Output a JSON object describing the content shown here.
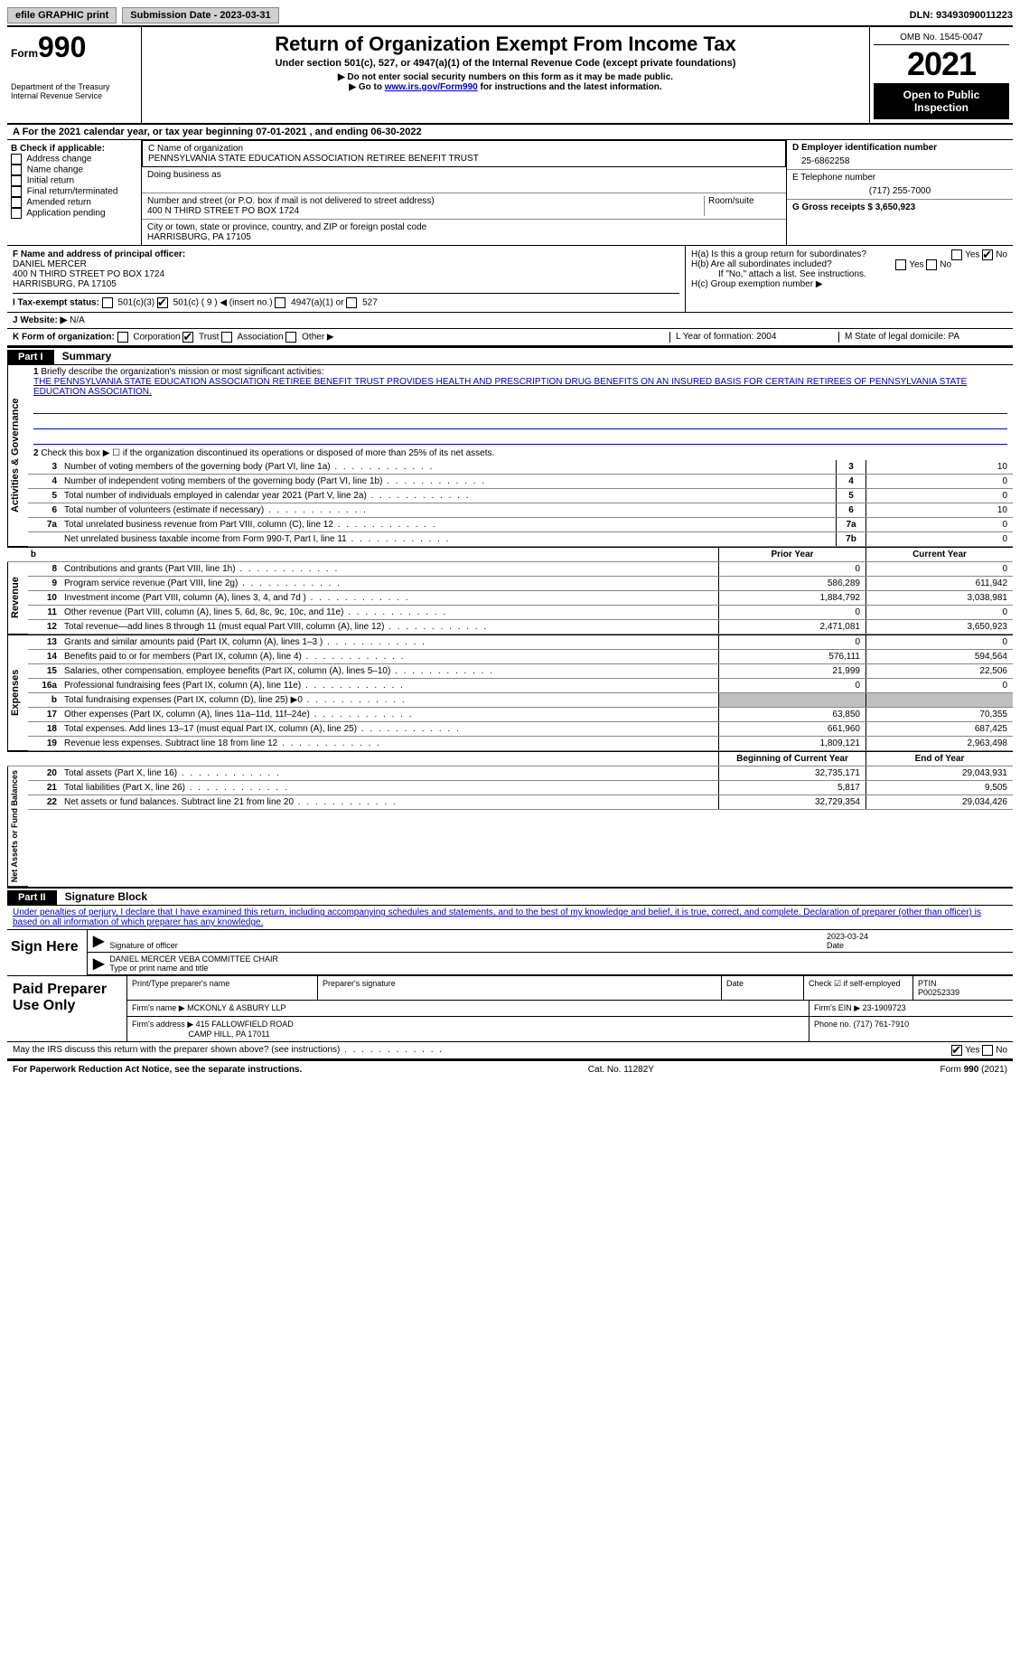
{
  "topbar": {
    "efile": "efile GRAPHIC print",
    "submission_label": "Submission Date - 2023-03-31",
    "dln_label": "DLN: 93493090011223"
  },
  "header": {
    "form_label": "Form",
    "form_number": "990",
    "dept": "Department of the Treasury Internal Revenue Service",
    "title": "Return of Organization Exempt From Income Tax",
    "subtitle": "Under section 501(c), 527, or 4947(a)(1) of the Internal Revenue Code (except private foundations)",
    "note1": "▶ Do not enter social security numbers on this form as it may be made public.",
    "note2_prefix": "▶ Go to ",
    "note2_link": "www.irs.gov/Form990",
    "note2_suffix": " for instructions and the latest information.",
    "omb": "OMB No. 1545-0047",
    "year": "2021",
    "open": "Open to Public Inspection"
  },
  "rowA": {
    "text": "A For the 2021 calendar year, or tax year beginning 07-01-2021   , and ending 06-30-2022"
  },
  "colB": {
    "label": "B Check if applicable:",
    "items": [
      "Address change",
      "Name change",
      "Initial return",
      "Final return/terminated",
      "Amended return",
      "Application pending"
    ]
  },
  "colC": {
    "name_label": "C Name of organization",
    "name": "PENNSYLVANIA STATE EDUCATION ASSOCIATION RETIREE BENEFIT TRUST",
    "dba_label": "Doing business as",
    "addr_label": "Number and street (or P.O. box if mail is not delivered to street address)",
    "room_label": "Room/suite",
    "addr": "400 N THIRD STREET PO BOX 1724",
    "city_label": "City or town, state or province, country, and ZIP or foreign postal code",
    "city": "HARRISBURG, PA  17105"
  },
  "colD": {
    "ein_label": "D Employer identification number",
    "ein": "25-6862258",
    "phone_label": "E Telephone number",
    "phone": "(717) 255-7000",
    "gross_label": "G Gross receipts $ 3,650,923"
  },
  "rowF": {
    "label": "F  Name and address of principal officer:",
    "name": "DANIEL MERCER",
    "addr": "400 N THIRD STREET PO BOX 1724",
    "city": "HARRISBURG, PA  17105"
  },
  "rowH": {
    "ha": "H(a)  Is this a group return for subordinates?",
    "hb": "H(b)  Are all subordinates included?",
    "hb_note": "If \"No,\" attach a list. See instructions.",
    "hc": "H(c)  Group exemption number ▶",
    "yes": "Yes",
    "no": "No"
  },
  "rowI": {
    "label": "I    Tax-exempt status:",
    "c3": "501(c)(3)",
    "c": "501(c) ( 9 ) ◀ (insert no.)",
    "a4947": "4947(a)(1) or",
    "s527": "527"
  },
  "rowJ": {
    "label": "J   Website: ▶",
    "value": "N/A"
  },
  "rowK": {
    "label": "K Form of organization:",
    "corp": "Corporation",
    "trust": "Trust",
    "assoc": "Association",
    "other": "Other ▶",
    "L_label": "L Year of formation: 2004",
    "M_label": "M State of legal domicile: PA"
  },
  "part1": {
    "header": "Part I",
    "title": "Summary",
    "line1_label": "Briefly describe the organization's mission or most significant activities:",
    "line1_text": "THE PENNSYLVANIA STATE EDUCATION ASSOCIATION RETIREE BENEFIT TRUST PROVIDES HEALTH AND PRESCRIPTION DRUG BENEFITS ON AN INSURED BASIS FOR CERTAIN RETIREES OF PENNSYLVANIA STATE EDUCATION ASSOCIATION.",
    "line2": "Check this box ▶ ☐ if the organization discontinued its operations or disposed of more than 25% of its net assets.",
    "sides": {
      "gov": "Activities & Governance",
      "rev": "Revenue",
      "exp": "Expenses",
      "net": "Net Assets or Fund Balances"
    },
    "rows_single": [
      {
        "n": "3",
        "d": "Number of voting members of the governing body (Part VI, line 1a)",
        "b": "3",
        "v": "10"
      },
      {
        "n": "4",
        "d": "Number of independent voting members of the governing body (Part VI, line 1b)",
        "b": "4",
        "v": "0"
      },
      {
        "n": "5",
        "d": "Total number of individuals employed in calendar year 2021 (Part V, line 2a)",
        "b": "5",
        "v": "0"
      },
      {
        "n": "6",
        "d": "Total number of volunteers (estimate if necessary)",
        "b": "6",
        "v": "10"
      },
      {
        "n": "7a",
        "d": "Total unrelated business revenue from Part VIII, column (C), line 12",
        "b": "7a",
        "v": "0"
      },
      {
        "n": "",
        "d": "Net unrelated business taxable income from Form 990-T, Part I, line 11",
        "b": "7b",
        "v": "0"
      }
    ],
    "col_headers": {
      "prior": "Prior Year",
      "current": "Current Year"
    },
    "rows_rev": [
      {
        "n": "8",
        "d": "Contributions and grants (Part VIII, line 1h)",
        "p": "0",
        "c": "0"
      },
      {
        "n": "9",
        "d": "Program service revenue (Part VIII, line 2g)",
        "p": "586,289",
        "c": "611,942"
      },
      {
        "n": "10",
        "d": "Investment income (Part VIII, column (A), lines 3, 4, and 7d )",
        "p": "1,884,792",
        "c": "3,038,981"
      },
      {
        "n": "11",
        "d": "Other revenue (Part VIII, column (A), lines 5, 6d, 8c, 9c, 10c, and 11e)",
        "p": "0",
        "c": "0"
      },
      {
        "n": "12",
        "d": "Total revenue—add lines 8 through 11 (must equal Part VIII, column (A), line 12)",
        "p": "2,471,081",
        "c": "3,650,923"
      }
    ],
    "rows_exp": [
      {
        "n": "13",
        "d": "Grants and similar amounts paid (Part IX, column (A), lines 1–3 )",
        "p": "0",
        "c": "0"
      },
      {
        "n": "14",
        "d": "Benefits paid to or for members (Part IX, column (A), line 4)",
        "p": "576,111",
        "c": "594,564"
      },
      {
        "n": "15",
        "d": "Salaries, other compensation, employee benefits (Part IX, column (A), lines 5–10)",
        "p": "21,999",
        "c": "22,506"
      },
      {
        "n": "16a",
        "d": "Professional fundraising fees (Part IX, column (A), line 11e)",
        "p": "0",
        "c": "0"
      },
      {
        "n": "b",
        "d": "Total fundraising expenses (Part IX, column (D), line 25) ▶0",
        "p": "",
        "c": "",
        "shaded": true
      },
      {
        "n": "17",
        "d": "Other expenses (Part IX, column (A), lines 11a–11d, 11f–24e)",
        "p": "63,850",
        "c": "70,355"
      },
      {
        "n": "18",
        "d": "Total expenses. Add lines 13–17 (must equal Part IX, column (A), line 25)",
        "p": "661,960",
        "c": "687,425"
      },
      {
        "n": "19",
        "d": "Revenue less expenses. Subtract line 18 from line 12",
        "p": "1,809,121",
        "c": "2,963,498"
      }
    ],
    "col_headers2": {
      "prior": "Beginning of Current Year",
      "current": "End of Year"
    },
    "rows_net": [
      {
        "n": "20",
        "d": "Total assets (Part X, line 16)",
        "p": "32,735,171",
        "c": "29,043,931"
      },
      {
        "n": "21",
        "d": "Total liabilities (Part X, line 26)",
        "p": "5,817",
        "c": "9,505"
      },
      {
        "n": "22",
        "d": "Net assets or fund balances. Subtract line 21 from line 20",
        "p": "32,729,354",
        "c": "29,034,426"
      }
    ]
  },
  "part2": {
    "header": "Part II",
    "title": "Signature Block",
    "decl": "Under penalties of perjury, I declare that I have examined this return, including accompanying schedules and statements, and to the best of my knowledge and belief, it is true, correct, and complete. Declaration of preparer (other than officer) is based on all information of which preparer has any knowledge.",
    "sign_here": "Sign Here",
    "sig_officer": "Signature of officer",
    "sig_date": "2023-03-24",
    "date_label": "Date",
    "officer_name": "DANIEL MERCER  VEBA COMMITTEE CHAIR",
    "type_name": "Type or print name and title",
    "paid_prep": "Paid Preparer Use Only",
    "prep_name_label": "Print/Type preparer's name",
    "prep_sig_label": "Preparer's signature",
    "check_self": "Check ☑ if self-employed",
    "ptin_label": "PTIN",
    "ptin": "P00252339",
    "firm_name_label": "Firm's name    ▶",
    "firm_name": "MCKONLY & ASBURY LLP",
    "firm_ein_label": "Firm's EIN ▶ 23-1909723",
    "firm_addr_label": "Firm's address ▶",
    "firm_addr": "415 FALLOWFIELD ROAD",
    "firm_city": "CAMP HILL, PA  17011",
    "firm_phone": "Phone no. (717) 761-7910",
    "discuss": "May the IRS discuss this return with the preparer shown above? (see instructions)",
    "yes": "Yes",
    "no": "No"
  },
  "footer": {
    "left": "For Paperwork Reduction Act Notice, see the separate instructions.",
    "center": "Cat. No. 11282Y",
    "right": "Form 990 (2021)"
  }
}
